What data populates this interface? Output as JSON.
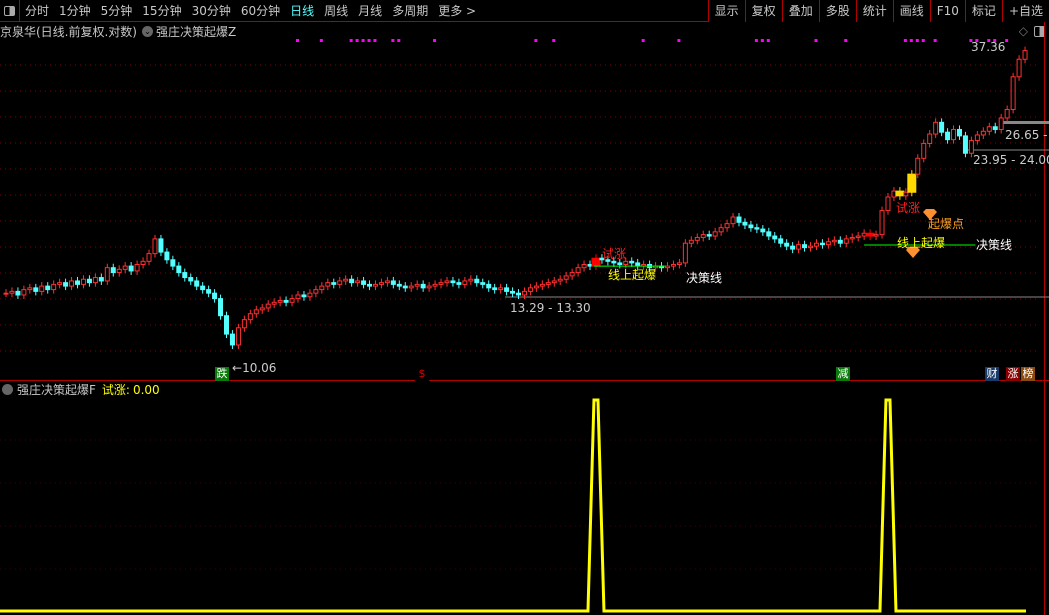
{
  "toolbar": {
    "periods": [
      "分时",
      "1分钟",
      "5分钟",
      "15分钟",
      "30分钟",
      "60分钟",
      "日线",
      "周线",
      "月线",
      "多周期",
      "更多 >"
    ],
    "active": "日线",
    "buttons": [
      "显示",
      "复权",
      "叠加",
      "多股",
      "统计",
      "画线",
      "F10",
      "标记",
      "+自选"
    ]
  },
  "info": {
    "title": "京泉华(日线.前复权.对数)",
    "indicator": "强庄决策起爆Z"
  },
  "indicator_pane": {
    "name": "强庄决策起爆F",
    "value_label": "试涨:",
    "value": "0.00"
  },
  "labels": {
    "high": "37.36",
    "box_price": "26.65 -",
    "range1": "23.95 - 24.00",
    "range2": "13.29 - 13.30",
    "low": "10.06",
    "try_up1": "试涨",
    "try_up2": "试涨",
    "breakout1": "线上起爆",
    "breakout2": "线上起爆",
    "decision1": "决策线",
    "decision2": "决策线",
    "burst_point": "起爆点"
  },
  "tags": [
    {
      "text": "跌",
      "color": "#0a7a0a"
    },
    {
      "text": "$",
      "color": "#000000",
      "fg": "#e00000"
    },
    {
      "text": "减",
      "color": "#0a7a0a"
    },
    {
      "text": "财",
      "color": "#1a3a6a"
    },
    {
      "text": "涨",
      "color": "#8a0000"
    },
    {
      "text": "榜",
      "color": "#8a4a10"
    }
  ],
  "colors": {
    "up": "#ff3030",
    "down": "#54ffff",
    "grid": "#800000",
    "signal": "#ffff00",
    "decision_line": "#00ff00",
    "dots": "#ff00ff"
  },
  "chart_data": {
    "type": "candlestick",
    "scale": "log",
    "ylim": [
      10.06,
      37.36
    ],
    "closes": [
      13.4,
      13.5,
      13.3,
      13.6,
      13.7,
      13.5,
      13.8,
      13.6,
      13.9,
      14.0,
      13.8,
      14.1,
      13.9,
      14.2,
      14.0,
      14.3,
      14.1,
      14.9,
      14.6,
      14.8,
      15.0,
      14.7,
      15.1,
      15.3,
      15.8,
      16.8,
      15.9,
      15.4,
      15.0,
      14.6,
      14.3,
      14.1,
      13.8,
      13.6,
      13.4,
      13.1,
      12.2,
      11.3,
      10.8,
      11.6,
      12.0,
      12.3,
      12.5,
      12.6,
      12.8,
      12.9,
      13.0,
      12.9,
      13.1,
      13.3,
      13.2,
      13.4,
      13.6,
      13.8,
      14.0,
      13.9,
      14.1,
      14.2,
      14.0,
      14.1,
      13.9,
      13.8,
      13.9,
      14.0,
      14.1,
      13.9,
      13.8,
      13.7,
      13.8,
      13.9,
      13.7,
      13.8,
      13.9,
      14.0,
      14.1,
      14.0,
      13.9,
      14.1,
      14.2,
      14.0,
      13.9,
      13.7,
      13.6,
      13.7,
      13.5,
      13.4,
      13.3,
      13.5,
      13.7,
      13.8,
      13.9,
      14.0,
      14.1,
      14.2,
      14.4,
      14.6,
      14.9,
      15.1,
      15.0,
      15.5,
      15.4,
      15.3,
      15.2,
      15.1,
      15.3,
      15.2,
      15.0,
      15.1,
      14.9,
      15.0,
      14.9,
      15.0,
      15.1,
      15.2,
      16.5,
      16.7,
      16.9,
      17.1,
      17.0,
      17.3,
      17.6,
      17.9,
      18.4,
      18.0,
      17.8,
      17.6,
      17.5,
      17.3,
      17.0,
      16.8,
      16.5,
      16.3,
      16.1,
      16.4,
      16.2,
      16.3,
      16.5,
      16.4,
      16.6,
      16.7,
      16.5,
      16.8,
      16.9,
      17.0,
      17.2,
      17.0,
      17.1,
      18.9,
      20.0,
      20.5,
      20.1,
      20.4,
      22.0,
      23.5,
      25.0,
      26.0,
      27.3,
      26.2,
      25.4,
      26.5,
      25.8,
      24.0,
      25.3,
      25.9,
      26.3,
      26.8,
      26.5,
      27.8,
      28.8,
      33.0,
      35.5,
      36.8
    ],
    "highlight_yellow": [
      150,
      152
    ],
    "highlight_red": [
      99,
      145
    ],
    "signal_spikes": [
      99,
      148
    ],
    "signal_range": [
      0,
      1
    ],
    "marker_dots": [
      49,
      53,
      58,
      59,
      60,
      61,
      62,
      65,
      66,
      72,
      89,
      92,
      107,
      113,
      126,
      127,
      128,
      136,
      141,
      151,
      152,
      153,
      154,
      156,
      162,
      163,
      165,
      166,
      168
    ]
  }
}
